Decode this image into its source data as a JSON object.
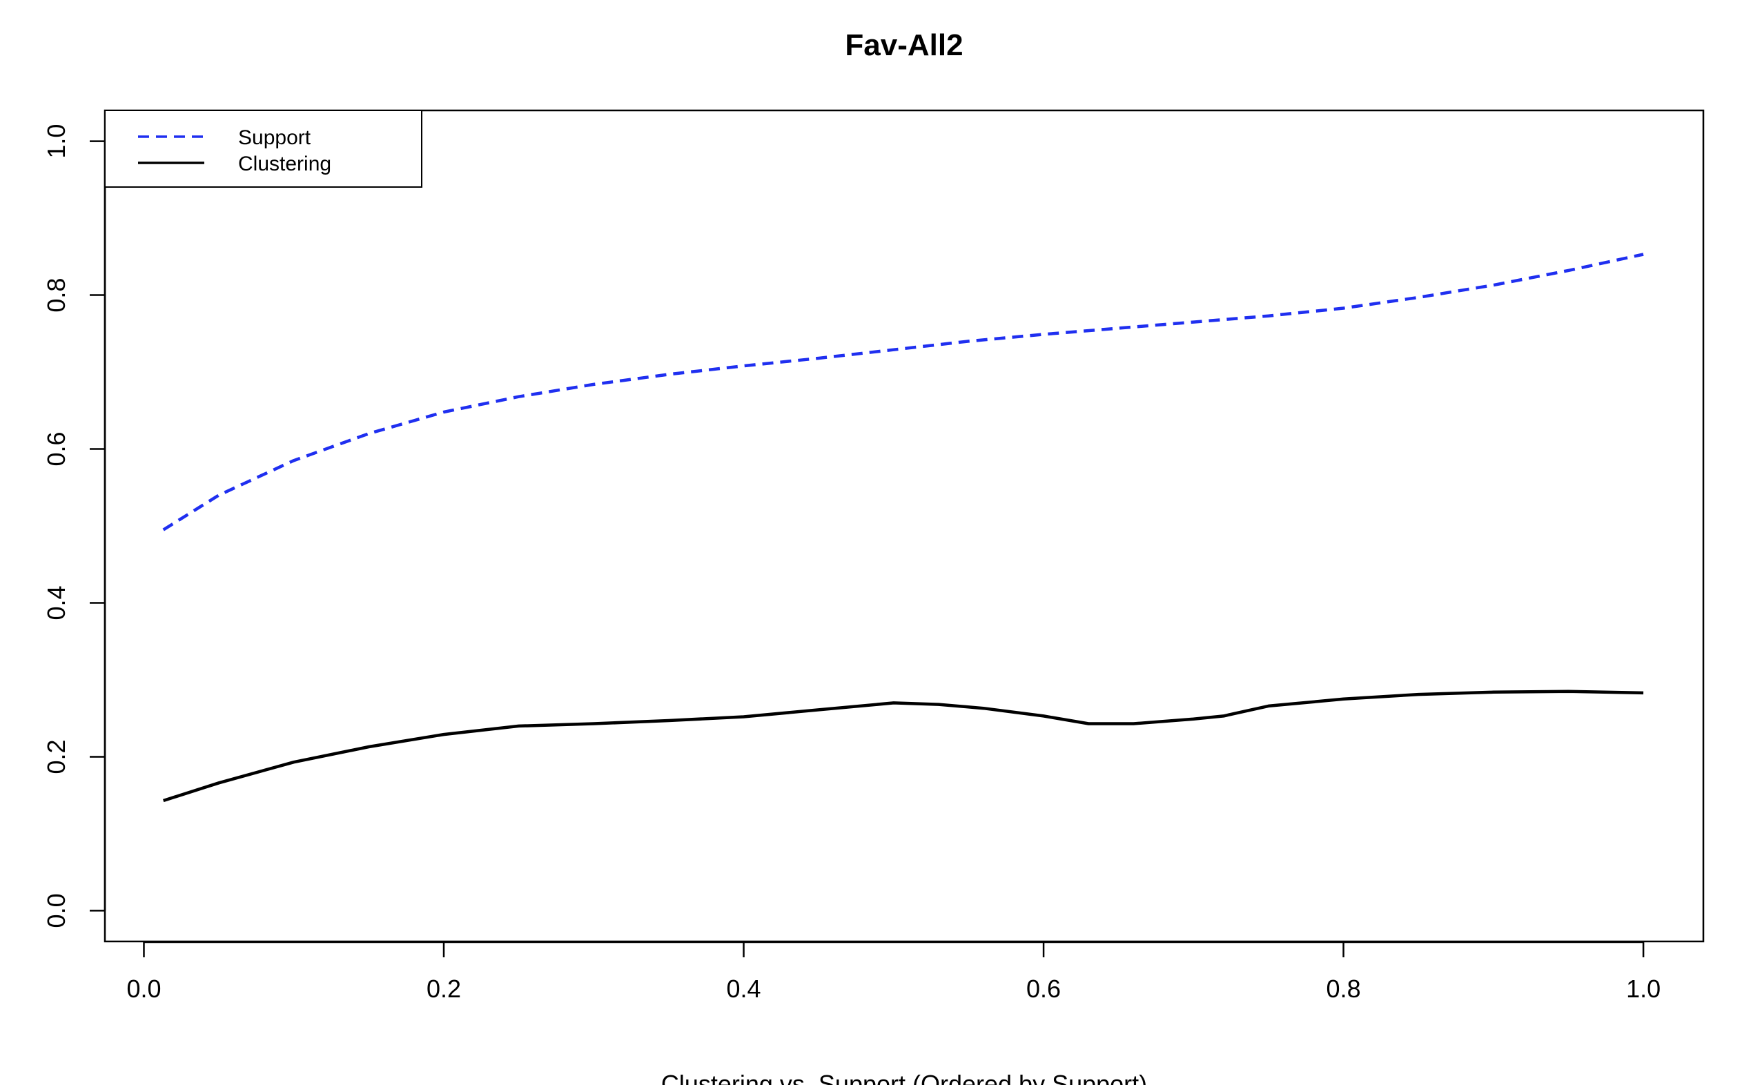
{
  "chart_data": {
    "type": "line",
    "title": "Fav-All2",
    "xlabel": "Clustering vs. Support (Ordered by Support)",
    "ylabel": "",
    "xlim": [
      -0.026,
      1.04
    ],
    "ylim": [
      -0.04,
      1.04
    ],
    "xticks": [
      0.0,
      0.2,
      0.4,
      0.6,
      0.8,
      1.0
    ],
    "xtick_labels": [
      "0.0",
      "0.2",
      "0.4",
      "0.6",
      "0.8",
      "1.0"
    ],
    "yticks": [
      0.0,
      0.2,
      0.4,
      0.6,
      0.8,
      1.0
    ],
    "ytick_labels": [
      "0.0",
      "0.2",
      "0.4",
      "0.6",
      "0.8",
      "1.0"
    ],
    "grid": false,
    "legend_position": "top-left",
    "series": [
      {
        "name": "Support",
        "color": "#1f2ff0",
        "dash": "dashed",
        "x": [
          0.013,
          0.05,
          0.1,
          0.15,
          0.2,
          0.25,
          0.3,
          0.35,
          0.4,
          0.45,
          0.5,
          0.55,
          0.6,
          0.65,
          0.7,
          0.75,
          0.8,
          0.85,
          0.9,
          0.95,
          1.0
        ],
        "y": [
          0.495,
          0.54,
          0.585,
          0.62,
          0.648,
          0.668,
          0.684,
          0.697,
          0.708,
          0.718,
          0.729,
          0.74,
          0.749,
          0.757,
          0.765,
          0.773,
          0.783,
          0.797,
          0.813,
          0.832,
          0.853
        ]
      },
      {
        "name": "Clustering",
        "color": "#000000",
        "dash": "solid",
        "x": [
          0.013,
          0.05,
          0.1,
          0.15,
          0.2,
          0.25,
          0.3,
          0.35,
          0.4,
          0.45,
          0.5,
          0.53,
          0.56,
          0.6,
          0.63,
          0.66,
          0.7,
          0.72,
          0.75,
          0.8,
          0.85,
          0.9,
          0.95,
          1.0
        ],
        "y": [
          0.143,
          0.166,
          0.193,
          0.213,
          0.229,
          0.24,
          0.243,
          0.247,
          0.252,
          0.261,
          0.27,
          0.268,
          0.263,
          0.253,
          0.243,
          0.243,
          0.249,
          0.253,
          0.266,
          0.275,
          0.281,
          0.284,
          0.285,
          0.283
        ]
      }
    ]
  }
}
